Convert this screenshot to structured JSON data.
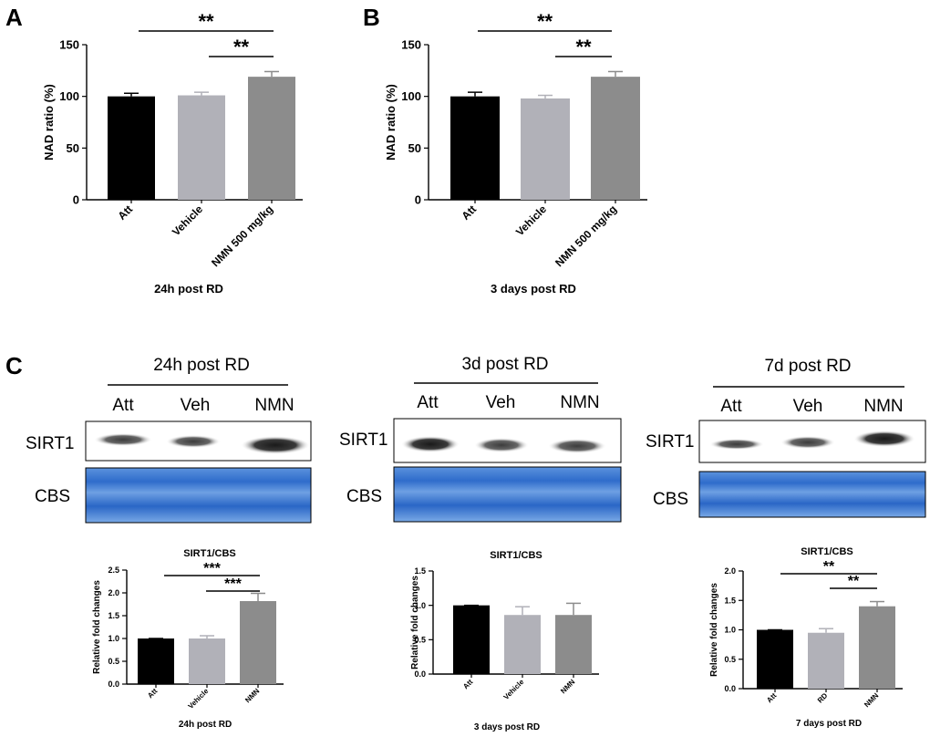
{
  "colors": {
    "att": "#000000",
    "vehicle": "#b1b1b8",
    "nmn": "#8c8c8c",
    "blot_blue": "#3a78cc"
  },
  "panel_a": {
    "letter": "A"
  },
  "panel_b": {
    "letter": "B"
  },
  "panel_c": {
    "letter": "C"
  },
  "blots": [
    {
      "title": "24h post RD",
      "lanes": [
        "Att",
        "Veh",
        "NMN"
      ],
      "row1": "SIRT1",
      "row2": "CBS"
    },
    {
      "title": "3d post RD",
      "lanes": [
        "Att",
        "Veh",
        "NMN"
      ],
      "row1": "SIRT1",
      "row2": "CBS"
    },
    {
      "title": "7d post RD",
      "lanes": [
        "Att",
        "Veh",
        "NMN"
      ],
      "row1": "SIRT1",
      "row2": "CBS"
    }
  ],
  "chart_data": [
    {
      "type": "bar",
      "id": "A",
      "categories": [
        "Att",
        "Vehicle",
        "NMN 500 mg/kg"
      ],
      "values": [
        100,
        101,
        119
      ],
      "errors": [
        3,
        3,
        5
      ],
      "title": "",
      "ylabel": "NAD ratio (%)",
      "xlabel": "24h post RD",
      "ylim": [
        0,
        150
      ],
      "yticks": [
        "0",
        "50",
        "100",
        "150"
      ],
      "sig": [
        {
          "from": 0,
          "to": 2,
          "label": "**"
        },
        {
          "from": 1,
          "to": 2,
          "label": "**"
        }
      ]
    },
    {
      "type": "bar",
      "id": "B",
      "categories": [
        "Att",
        "Vehicle",
        "NMN 500 mg/kg"
      ],
      "values": [
        100,
        98,
        119
      ],
      "errors": [
        4,
        3,
        5
      ],
      "title": "",
      "ylabel": "NAD ratio (%)",
      "xlabel": "3 days post RD",
      "ylim": [
        0,
        150
      ],
      "yticks": [
        "0",
        "50",
        "100",
        "150"
      ],
      "sig": [
        {
          "from": 0,
          "to": 2,
          "label": "**"
        },
        {
          "from": 1,
          "to": 2,
          "label": "**"
        }
      ]
    },
    {
      "type": "bar",
      "id": "C1",
      "categories": [
        "Att",
        "Vehicle",
        "NMN"
      ],
      "values": [
        1.0,
        1.0,
        1.82
      ],
      "errors": [
        0.0,
        0.06,
        0.17
      ],
      "title": "SIRT1/CBS",
      "ylabel": "Relative fold changes",
      "xlabel": "24h post RD",
      "ylim": [
        0,
        2.5
      ],
      "yticks": [
        "0.0",
        "0.5",
        "1.0",
        "1.5",
        "2.0",
        "2.5"
      ],
      "sig": [
        {
          "from": 0,
          "to": 2,
          "label": "***"
        },
        {
          "from": 1,
          "to": 2,
          "label": "***"
        }
      ]
    },
    {
      "type": "bar",
      "id": "C2",
      "categories": [
        "Att",
        "Vehicle",
        "NMN"
      ],
      "values": [
        1.0,
        0.86,
        0.86
      ],
      "errors": [
        0.0,
        0.12,
        0.17
      ],
      "title": "SIRT1/CBS",
      "ylabel": "Relative fold changes",
      "xlabel": "3 days post RD",
      "ylim": [
        0,
        1.5
      ],
      "yticks": [
        "0.0",
        "0.5",
        "1.0",
        "1.5"
      ],
      "sig": []
    },
    {
      "type": "bar",
      "id": "C3",
      "categories": [
        "Att",
        "RD",
        "NMN"
      ],
      "values": [
        1.0,
        0.95,
        1.4
      ],
      "errors": [
        0.0,
        0.07,
        0.08
      ],
      "title": "SIRT1/CBS",
      "ylabel": "Relative fold changes",
      "xlabel": "7 days post RD",
      "ylim": [
        0,
        2.0
      ],
      "yticks": [
        "0.0",
        "0.5",
        "1.0",
        "1.5",
        "2.0"
      ],
      "sig": [
        {
          "from": 0,
          "to": 2,
          "label": "**"
        },
        {
          "from": 1,
          "to": 2,
          "label": "**"
        }
      ]
    }
  ]
}
